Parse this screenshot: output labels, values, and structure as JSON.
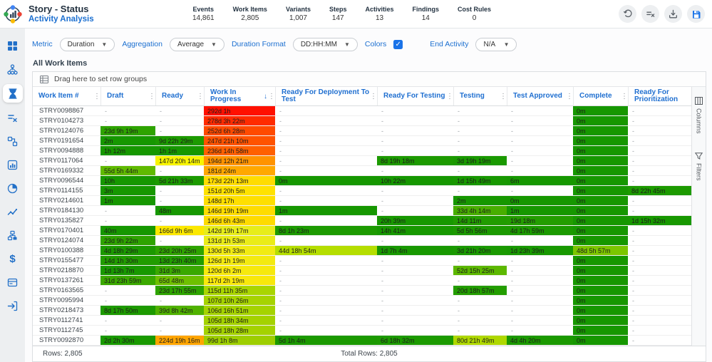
{
  "colors": {
    "accent_blue": "#1b6fd0",
    "green_base": "#169700",
    "selection_blue": "#1a73e8"
  },
  "header": {
    "title": "Story - Status",
    "subtitle": "Activity Analysis",
    "stats": [
      {
        "label": "Events",
        "value": "14,861"
      },
      {
        "label": "Work Items",
        "value": "2,805"
      },
      {
        "label": "Variants",
        "value": "1,007"
      },
      {
        "label": "Steps",
        "value": "147"
      },
      {
        "label": "Activities",
        "value": "13"
      },
      {
        "label": "Findings",
        "value": "14"
      },
      {
        "label": "Cost Rules",
        "value": "0"
      }
    ],
    "actions": [
      "undo",
      "clear-state",
      "download",
      "save"
    ]
  },
  "sidebar": {
    "items": [
      "dashboard",
      "process-flow",
      "activity-analysis",
      "checklist",
      "workflow",
      "bar-chart",
      "pie-chart",
      "trend",
      "tree",
      "cost",
      "cards",
      "logout"
    ],
    "active": "activity-analysis"
  },
  "toolbar": {
    "metric_label": "Metric",
    "metric_value": "Duration",
    "aggregation_label": "Aggregation",
    "aggregation_value": "Average",
    "duration_format_label": "Duration Format",
    "duration_format_value": "DD:HH:MM",
    "colors_label": "Colors",
    "colors_checked": true,
    "end_activity_label": "End Activity",
    "end_activity_value": "N/A"
  },
  "section_title": "All Work Items",
  "grid": {
    "drag_hint": "Drag here to set row groups",
    "columns": [
      {
        "label": "Work Item #",
        "menu": true
      },
      {
        "label": "Draft",
        "menu": true
      },
      {
        "label": "Ready",
        "menu": true
      },
      {
        "label": "Work In Progress",
        "menu": true,
        "sort": "desc"
      },
      {
        "label": "Ready For Deployment To Test",
        "menu": true
      },
      {
        "label": "Ready For Testing",
        "menu": true
      },
      {
        "label": "Testing",
        "menu": true
      },
      {
        "label": "Test Approved",
        "menu": true
      },
      {
        "label": "Complete",
        "menu": true
      },
      {
        "label": "Ready For Prioritization",
        "menu": false
      }
    ],
    "rows": [
      {
        "id": "STRY0098867",
        "cells": [
          null,
          null,
          {
            "v": "292d 1h",
            "c": "#FF1000"
          },
          null,
          null,
          null,
          null,
          {
            "v": "0m",
            "c": "#169700"
          },
          null
        ]
      },
      {
        "id": "STRY0104273",
        "cells": [
          null,
          null,
          {
            "v": "278d 3h 22m",
            "c": "#FF2B00"
          },
          null,
          null,
          null,
          null,
          {
            "v": "0m",
            "c": "#169700"
          },
          null
        ]
      },
      {
        "id": "STRY0124076",
        "cells": [
          {
            "v": "23d 9h 19m",
            "c": "#2EA300"
          },
          null,
          {
            "v": "252d 6h 28m",
            "c": "#FF4A00"
          },
          null,
          null,
          null,
          null,
          {
            "v": "0m",
            "c": "#169700"
          },
          null
        ]
      },
      {
        "id": "STRY0191654",
        "cells": [
          {
            "v": "2m",
            "c": "#169700"
          },
          {
            "v": "9d 22h 29m",
            "c": "#1D9A00"
          },
          {
            "v": "247d 21h 10m",
            "c": "#FF5300"
          },
          null,
          null,
          null,
          null,
          {
            "v": "0m",
            "c": "#169700"
          },
          null
        ]
      },
      {
        "id": "STRY0094888",
        "cells": [
          {
            "v": "1h 12m",
            "c": "#169700"
          },
          {
            "v": "1h 1m",
            "c": "#169700"
          },
          {
            "v": "236d 14h 58m",
            "c": "#FF6000"
          },
          null,
          null,
          null,
          null,
          {
            "v": "0m",
            "c": "#169700"
          },
          null
        ]
      },
      {
        "id": "STRY0117064",
        "cells": [
          null,
          {
            "v": "147d 20h 14m",
            "c": "#F8F500"
          },
          {
            "v": "194d 12h 21m",
            "c": "#FF9300"
          },
          null,
          {
            "v": "8d 19h 18m",
            "c": "#1D9A00"
          },
          {
            "v": "3d 19h 19m",
            "c": "#1A9900"
          },
          null,
          {
            "v": "0m",
            "c": "#169700"
          },
          null
        ]
      },
      {
        "id": "STRY0169332",
        "cells": [
          {
            "v": "55d 5h 44m",
            "c": "#60BA00"
          },
          null,
          {
            "v": "181d 24m",
            "c": "#FFA800"
          },
          null,
          null,
          null,
          null,
          {
            "v": "0m",
            "c": "#169700"
          },
          null
        ]
      },
      {
        "id": "STRY0096544",
        "cells": [
          {
            "v": "10h",
            "c": "#169700"
          },
          {
            "v": "5d 21h 33m",
            "c": "#1C9A00"
          },
          {
            "v": "173d 22h 13m",
            "c": "#FFDC00"
          },
          {
            "v": "0m",
            "c": "#169700"
          },
          {
            "v": "10h 22m",
            "c": "#169700"
          },
          {
            "v": "1d 15h 49m",
            "c": "#189800"
          },
          {
            "v": "6m",
            "c": "#169700"
          },
          {
            "v": "0m",
            "c": "#169700"
          },
          null
        ]
      },
      {
        "id": "STRY0114155",
        "cells": [
          {
            "v": "3m",
            "c": "#169700"
          },
          null,
          {
            "v": "151d 20h 5m",
            "c": "#FFE200"
          },
          null,
          null,
          null,
          null,
          {
            "v": "0m",
            "c": "#169700"
          },
          {
            "v": "8d 22h 45m",
            "c": "#1D9A00"
          }
        ]
      },
      {
        "id": "STRY0214601",
        "cells": [
          {
            "v": "1m",
            "c": "#169700"
          },
          null,
          {
            "v": "148d 17h",
            "c": "#FEDF00"
          },
          null,
          null,
          {
            "v": "2m",
            "c": "#169700"
          },
          {
            "v": "0m",
            "c": "#169700"
          },
          {
            "v": "0m",
            "c": "#169700"
          },
          null
        ]
      },
      {
        "id": "STRY0184130",
        "cells": [
          null,
          {
            "v": "48m",
            "c": "#169700"
          },
          {
            "v": "146d 19h 19m",
            "c": "#FEDC00"
          },
          {
            "v": "1m",
            "c": "#169700"
          },
          null,
          {
            "v": "33d 4h 14m",
            "c": "#48AE00"
          },
          {
            "v": "1m",
            "c": "#169700"
          },
          {
            "v": "0m",
            "c": "#169700"
          },
          null
        ]
      },
      {
        "id": "STRY0135827",
        "cells": [
          null,
          null,
          {
            "v": "146d 6h 43m",
            "c": "#FEDB00"
          },
          null,
          {
            "v": "20h 39m",
            "c": "#179800"
          },
          {
            "v": "14d 11m",
            "c": "#219C00"
          },
          {
            "v": "19d 18m",
            "c": "#239D00"
          },
          {
            "v": "0m",
            "c": "#169700"
          },
          {
            "v": "1d 15h 32m",
            "c": "#189800"
          }
        ]
      },
      {
        "id": "STRY0170401",
        "cells": [
          {
            "v": "40m",
            "c": "#169700"
          },
          {
            "v": "166d 9h 6m",
            "c": "#FCE800"
          },
          {
            "v": "142d 19h 17m",
            "c": "#E7ED1A"
          },
          {
            "v": "8d 1h 23m",
            "c": "#1D9A00"
          },
          {
            "v": "14h 41m",
            "c": "#179800"
          },
          {
            "v": "5d 5h 56m",
            "c": "#1B9900"
          },
          {
            "v": "4d 17h 59m",
            "c": "#1B9900"
          },
          {
            "v": "0m",
            "c": "#169700"
          },
          null
        ]
      },
      {
        "id": "STRY0124074",
        "cells": [
          {
            "v": "23d 9h 22m",
            "c": "#2EA300"
          },
          null,
          {
            "v": "131d 1h 53m",
            "c": "#EAEC18"
          },
          null,
          null,
          null,
          null,
          {
            "v": "0m",
            "c": "#169700"
          },
          null
        ]
      },
      {
        "id": "STRY0100388",
        "cells": [
          {
            "v": "4d 18h 29m",
            "c": "#1B9900"
          },
          {
            "v": "23d 20h 25m",
            "c": "#2EA300"
          },
          {
            "v": "130d 5h 33m",
            "c": "#F1EB12"
          },
          {
            "v": "44d 18h 54m",
            "c": "#B5DE00"
          },
          {
            "v": "1d 7h 4m",
            "c": "#189800"
          },
          {
            "v": "3d 21h 20m",
            "c": "#1A9900"
          },
          {
            "v": "1d 23h 39m",
            "c": "#189800"
          },
          {
            "v": "48d 5h 57m",
            "c": "#7CC600"
          },
          null
        ]
      },
      {
        "id": "STRY0155477",
        "cells": [
          {
            "v": "14d 1h 30m",
            "c": "#219C00"
          },
          {
            "v": "13d 23h 40m",
            "c": "#219C00"
          },
          {
            "v": "126d 1h 19m",
            "c": "#F3EA10"
          },
          null,
          null,
          null,
          null,
          {
            "v": "0m",
            "c": "#169700"
          },
          null
        ]
      },
      {
        "id": "STRY0218870",
        "cells": [
          {
            "v": "1d 13h 7m",
            "c": "#189800"
          },
          {
            "v": "31d 3m",
            "c": "#3AA800"
          },
          {
            "v": "120d 6h 2m",
            "c": "#F6E90D"
          },
          null,
          null,
          {
            "v": "52d 15h 25m",
            "c": "#5CB800"
          },
          null,
          {
            "v": "0m",
            "c": "#169700"
          },
          null
        ]
      },
      {
        "id": "STRY0137261",
        "cells": [
          {
            "v": "31d 23h 59m",
            "c": "#3BA900"
          },
          {
            "v": "65d 48m",
            "c": "#6EC000"
          },
          {
            "v": "117d 2h 19m",
            "c": "#F8E80B"
          },
          null,
          null,
          null,
          null,
          {
            "v": "0m",
            "c": "#169700"
          },
          null
        ]
      },
      {
        "id": "STRY0163565",
        "cells": [
          null,
          {
            "v": "23d 17h 55m",
            "c": "#2EA300"
          },
          {
            "v": "115d 11h 35m",
            "c": "#A9D500"
          },
          null,
          null,
          {
            "v": "20d 18h 57m",
            "c": "#239D00"
          },
          null,
          {
            "v": "0m",
            "c": "#169700"
          },
          null
        ]
      },
      {
        "id": "STRY0095994",
        "cells": [
          null,
          null,
          {
            "v": "107d 10h 26m",
            "c": "#A6D300"
          },
          null,
          null,
          null,
          null,
          {
            "v": "0m",
            "c": "#169700"
          },
          null
        ]
      },
      {
        "id": "STRY0218473",
        "cells": [
          {
            "v": "8d 17h 50m",
            "c": "#1D9A00"
          },
          {
            "v": "39d 8h 42m",
            "c": "#50B200"
          },
          {
            "v": "106d 16h 51m",
            "c": "#A5D300"
          },
          null,
          null,
          null,
          null,
          {
            "v": "0m",
            "c": "#169700"
          },
          null
        ]
      },
      {
        "id": "STRY0112741",
        "cells": [
          null,
          null,
          {
            "v": "105d 18h 34m",
            "c": "#A4D200"
          },
          null,
          null,
          null,
          null,
          {
            "v": "0m",
            "c": "#169700"
          },
          null
        ]
      },
      {
        "id": "STRY0112745",
        "cells": [
          null,
          null,
          {
            "v": "105d 18h 28m",
            "c": "#A4D200"
          },
          null,
          null,
          null,
          null,
          {
            "v": "0m",
            "c": "#169700"
          },
          null
        ]
      },
      {
        "id": "STRY0092870",
        "cells": [
          {
            "v": "2d 2h 30m",
            "c": "#199900"
          },
          {
            "v": "224d 19h 16m",
            "c": "#FFA500"
          },
          {
            "v": "99d 1h 8m",
            "c": "#9DCE00"
          },
          {
            "v": "5d 1h 4m",
            "c": "#1B9900"
          },
          {
            "v": "6d 18h 32m",
            "c": "#1C9A00"
          },
          {
            "v": "80d 21h 49m",
            "c": "#AFD800"
          },
          {
            "v": "4d 4h 20m",
            "c": "#1B9900"
          },
          {
            "v": "0m",
            "c": "#169700"
          },
          null
        ]
      }
    ],
    "side_panel": [
      "Columns",
      "Filters"
    ],
    "footer_left": "Rows: 2,805",
    "footer_center": "Total Rows: 2,805"
  }
}
